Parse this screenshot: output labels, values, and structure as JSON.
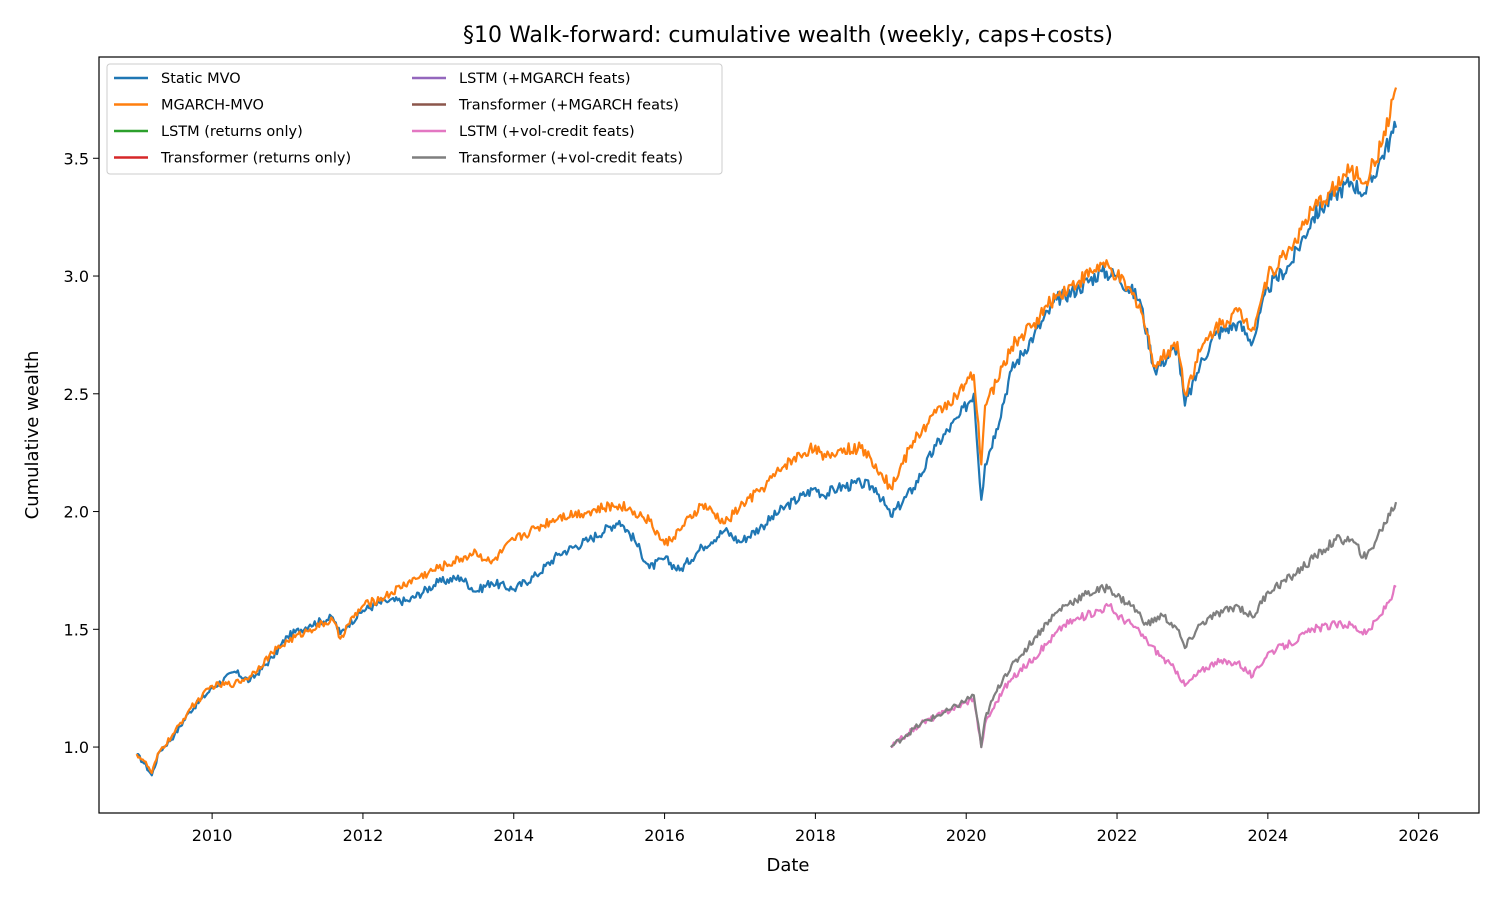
{
  "chart_data": {
    "type": "line",
    "title": "§10 Walk-forward: cumulative wealth (weekly, caps+costs)",
    "xlabel": "Date",
    "ylabel": "Cumulative wealth",
    "xlim": [
      2008.5,
      2026.8
    ],
    "ylim": [
      0.72,
      3.93
    ],
    "x_ticks": [
      2010,
      2012,
      2014,
      2016,
      2018,
      2020,
      2022,
      2024,
      2026
    ],
    "y_ticks": [
      1.0,
      1.5,
      2.0,
      2.5,
      3.0,
      3.5
    ],
    "y_tick_labels": [
      "1.0",
      "1.5",
      "2.0",
      "2.5",
      "3.0",
      "3.5"
    ],
    "grid": false,
    "legend_position": "upper-left",
    "colors": {
      "Static MVO": "#1f77b4",
      "MGARCH-MVO": "#ff7f0e",
      "LSTM (returns only)": "#2ca02c",
      "Transformer (returns only)": "#d62728",
      "LSTM (+MGARCH feats)": "#9467bd",
      "Transformer (+MGARCH feats)": "#8c564b",
      "LSTM (+vol-credit feats)": "#e377c2",
      "Transformer (+vol-credit feats)": "#7f7f7f"
    },
    "series": [
      {
        "name": "Static MVO",
        "x": [
          2009.0,
          2009.1,
          2009.2,
          2009.3,
          2009.5,
          2009.7,
          2010.0,
          2010.3,
          2010.5,
          2010.8,
          2011.0,
          2011.3,
          2011.6,
          2011.7,
          2011.8,
          2012.0,
          2012.3,
          2012.6,
          2013.0,
          2013.3,
          2013.5,
          2013.7,
          2014.0,
          2014.3,
          2014.6,
          2015.0,
          2015.4,
          2015.6,
          2015.8,
          2016.0,
          2016.2,
          2016.5,
          2016.8,
          2017.0,
          2017.3,
          2017.6,
          2018.0,
          2018.1,
          2018.3,
          2018.6,
          2018.8,
          2019.0,
          2019.3,
          2019.6,
          2019.9,
          2020.1,
          2020.2,
          2020.25,
          2020.4,
          2020.6,
          2020.9,
          2021.2,
          2021.5,
          2021.8,
          2022.0,
          2022.3,
          2022.5,
          2022.8,
          2022.9,
          2023.1,
          2023.3,
          2023.6,
          2023.8,
          2024.0,
          2024.3,
          2024.6,
          2024.9,
          2025.1,
          2025.3,
          2025.5,
          2025.7
        ],
        "values": [
          0.97,
          0.93,
          0.88,
          0.98,
          1.05,
          1.15,
          1.25,
          1.32,
          1.28,
          1.38,
          1.47,
          1.52,
          1.55,
          1.48,
          1.52,
          1.58,
          1.62,
          1.62,
          1.7,
          1.72,
          1.66,
          1.7,
          1.67,
          1.73,
          1.82,
          1.88,
          1.96,
          1.88,
          1.76,
          1.8,
          1.75,
          1.85,
          1.92,
          1.87,
          1.94,
          2.02,
          2.1,
          2.07,
          2.1,
          2.12,
          2.1,
          1.98,
          2.1,
          2.28,
          2.4,
          2.5,
          2.05,
          2.2,
          2.35,
          2.6,
          2.75,
          2.9,
          2.95,
          3.02,
          3.0,
          2.9,
          2.6,
          2.7,
          2.45,
          2.62,
          2.75,
          2.8,
          2.72,
          2.95,
          3.05,
          3.25,
          3.35,
          3.4,
          3.35,
          3.5,
          3.63
        ]
      },
      {
        "name": "MGARCH-MVO",
        "x": [
          2009.0,
          2009.1,
          2009.2,
          2009.3,
          2009.5,
          2009.7,
          2010.0,
          2010.3,
          2010.5,
          2010.8,
          2011.0,
          2011.3,
          2011.6,
          2011.7,
          2011.8,
          2012.0,
          2012.3,
          2012.6,
          2013.0,
          2013.3,
          2013.5,
          2013.7,
          2014.0,
          2014.3,
          2014.6,
          2015.0,
          2015.4,
          2015.6,
          2015.8,
          2016.0,
          2016.2,
          2016.5,
          2016.8,
          2017.0,
          2017.3,
          2017.6,
          2018.0,
          2018.1,
          2018.3,
          2018.6,
          2018.8,
          2019.0,
          2019.3,
          2019.6,
          2019.9,
          2020.1,
          2020.2,
          2020.25,
          2020.4,
          2020.6,
          2020.9,
          2021.2,
          2021.5,
          2021.8,
          2022.0,
          2022.3,
          2022.5,
          2022.8,
          2022.9,
          2023.1,
          2023.3,
          2023.6,
          2023.8,
          2024.0,
          2024.3,
          2024.6,
          2024.9,
          2025.1,
          2025.3,
          2025.5,
          2025.7
        ],
        "values": [
          0.97,
          0.94,
          0.89,
          0.98,
          1.06,
          1.16,
          1.26,
          1.27,
          1.3,
          1.4,
          1.45,
          1.5,
          1.54,
          1.46,
          1.52,
          1.6,
          1.64,
          1.7,
          1.76,
          1.8,
          1.83,
          1.78,
          1.88,
          1.93,
          1.98,
          2.0,
          2.03,
          2.0,
          1.96,
          1.86,
          1.92,
          2.03,
          1.95,
          2.02,
          2.1,
          2.2,
          2.28,
          2.22,
          2.26,
          2.27,
          2.2,
          2.1,
          2.3,
          2.42,
          2.5,
          2.58,
          2.2,
          2.45,
          2.55,
          2.7,
          2.8,
          2.92,
          2.98,
          3.05,
          3.0,
          2.88,
          2.62,
          2.72,
          2.5,
          2.68,
          2.78,
          2.85,
          2.78,
          3.0,
          3.12,
          3.28,
          3.38,
          3.45,
          3.4,
          3.55,
          3.8
        ]
      },
      {
        "name": "LSTM (+vol-credit feats)",
        "x": [
          2019.0,
          2019.2,
          2019.4,
          2019.6,
          2019.8,
          2020.0,
          2020.1,
          2020.2,
          2020.25,
          2020.35,
          2020.5,
          2020.7,
          2020.9,
          2021.1,
          2021.3,
          2021.6,
          2021.9,
          2022.0,
          2022.2,
          2022.4,
          2022.6,
          2022.8,
          2022.9,
          2023.1,
          2023.3,
          2023.6,
          2023.8,
          2024.0,
          2024.3,
          2024.6,
          2024.9,
          2025.1,
          2025.3,
          2025.5,
          2025.7
        ],
        "values": [
          1.0,
          1.05,
          1.1,
          1.13,
          1.16,
          1.19,
          1.21,
          1.0,
          1.1,
          1.16,
          1.25,
          1.32,
          1.38,
          1.45,
          1.52,
          1.56,
          1.6,
          1.56,
          1.52,
          1.45,
          1.38,
          1.32,
          1.26,
          1.32,
          1.36,
          1.36,
          1.3,
          1.4,
          1.44,
          1.5,
          1.52,
          1.52,
          1.48,
          1.56,
          1.68
        ]
      },
      {
        "name": "Transformer (+vol-credit feats)",
        "x": [
          2019.0,
          2019.2,
          2019.4,
          2019.6,
          2019.8,
          2020.0,
          2020.1,
          2020.2,
          2020.25,
          2020.35,
          2020.5,
          2020.7,
          2020.9,
          2021.1,
          2021.3,
          2021.6,
          2021.9,
          2022.0,
          2022.2,
          2022.4,
          2022.6,
          2022.8,
          2022.9,
          2023.1,
          2023.3,
          2023.6,
          2023.8,
          2024.0,
          2024.3,
          2024.6,
          2024.9,
          2025.1,
          2025.3,
          2025.5,
          2025.7
        ],
        "values": [
          1.0,
          1.05,
          1.1,
          1.13,
          1.16,
          1.2,
          1.22,
          1.0,
          1.12,
          1.2,
          1.3,
          1.38,
          1.46,
          1.54,
          1.6,
          1.65,
          1.68,
          1.64,
          1.6,
          1.52,
          1.56,
          1.5,
          1.42,
          1.52,
          1.56,
          1.6,
          1.55,
          1.66,
          1.72,
          1.8,
          1.88,
          1.88,
          1.8,
          1.92,
          2.04
        ]
      }
    ],
    "legend": {
      "column_1": [
        "Static MVO",
        "MGARCH-MVO",
        "LSTM (returns only)",
        "Transformer (returns only)"
      ],
      "column_2": [
        "LSTM (+MGARCH feats)",
        "Transformer (+MGARCH feats)",
        "LSTM (+vol-credit feats)",
        "Transformer (+vol-credit feats)"
      ]
    }
  }
}
